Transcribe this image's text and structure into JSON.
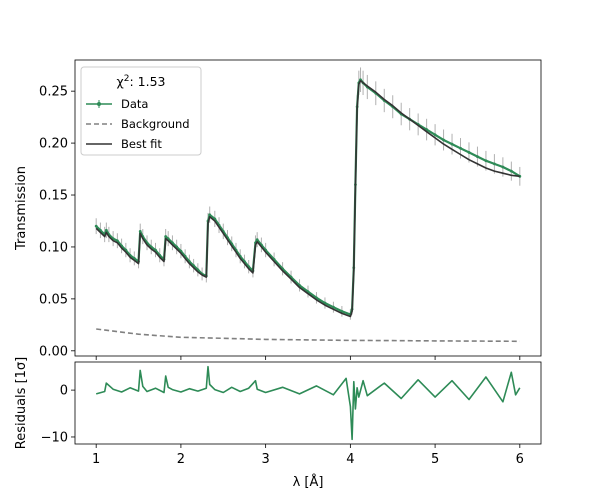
{
  "chart_data": [
    {
      "type": "line",
      "panel": "main",
      "xlim": [
        0.75,
        6.25
      ],
      "ylim": [
        -0.005,
        0.28
      ],
      "ylabel": "Transmission",
      "xlabel": "",
      "yticks": [
        0.0,
        0.05,
        0.1,
        0.15,
        0.2,
        0.25
      ],
      "ytick_labels": [
        "0.00",
        "0.05",
        "0.10",
        "0.15",
        "0.20",
        "0.25"
      ],
      "xticks": [
        1,
        2,
        3,
        4,
        5,
        6
      ],
      "grid": false,
      "legend": {
        "placement": "top-left",
        "title": "χ²: 1.53",
        "title_main": "χ",
        "title_sup": "2",
        "title_rest": ": 1.53",
        "entries": [
          "Data",
          "Background",
          "Best fit"
        ]
      },
      "series": [
        {
          "name": "Data",
          "color": "#2e8b57",
          "errorbar_color": "#b0b0b0",
          "x": [
            1.0,
            1.05,
            1.1,
            1.12,
            1.15,
            1.2,
            1.25,
            1.3,
            1.35,
            1.4,
            1.45,
            1.5,
            1.52,
            1.55,
            1.6,
            1.65,
            1.7,
            1.75,
            1.8,
            1.82,
            1.85,
            1.9,
            1.95,
            2.0,
            2.05,
            2.1,
            2.15,
            2.2,
            2.25,
            2.3,
            2.32,
            2.34,
            2.4,
            2.45,
            2.5,
            2.55,
            2.6,
            2.65,
            2.7,
            2.75,
            2.8,
            2.85,
            2.88,
            2.9,
            2.95,
            3.0,
            3.1,
            3.2,
            3.3,
            3.4,
            3.5,
            3.6,
            3.7,
            3.8,
            3.9,
            4.0,
            4.02,
            4.04,
            4.06,
            4.08,
            4.1,
            4.12,
            4.15,
            4.2,
            4.3,
            4.4,
            4.5,
            4.6,
            4.7,
            4.8,
            4.9,
            5.0,
            5.1,
            5.2,
            5.3,
            5.4,
            5.5,
            5.6,
            5.7,
            5.8,
            5.9,
            6.0
          ],
          "y": [
            0.12,
            0.116,
            0.112,
            0.116,
            0.112,
            0.108,
            0.106,
            0.101,
            0.097,
            0.092,
            0.089,
            0.086,
            0.115,
            0.11,
            0.104,
            0.1,
            0.097,
            0.092,
            0.088,
            0.11,
            0.108,
            0.104,
            0.1,
            0.096,
            0.091,
            0.086,
            0.082,
            0.078,
            0.074,
            0.072,
            0.125,
            0.131,
            0.127,
            0.121,
            0.115,
            0.109,
            0.103,
            0.097,
            0.091,
            0.086,
            0.081,
            0.077,
            0.104,
            0.107,
            0.102,
            0.097,
            0.088,
            0.079,
            0.071,
            0.063,
            0.057,
            0.051,
            0.046,
            0.042,
            0.038,
            0.035,
            0.04,
            0.08,
            0.16,
            0.235,
            0.258,
            0.261,
            0.258,
            0.254,
            0.248,
            0.241,
            0.235,
            0.228,
            0.223,
            0.218,
            0.213,
            0.208,
            0.203,
            0.199,
            0.195,
            0.191,
            0.187,
            0.183,
            0.18,
            0.177,
            0.173,
            0.168
          ]
        },
        {
          "name": "Background",
          "color": "#808080",
          "linestyle": "dashed",
          "x": [
            1.0,
            1.5,
            2.0,
            2.5,
            3.0,
            3.5,
            4.0,
            4.5,
            5.0,
            5.5,
            6.0
          ],
          "y": [
            0.021,
            0.016,
            0.013,
            0.012,
            0.011,
            0.0105,
            0.01,
            0.0098,
            0.0095,
            0.0093,
            0.0092
          ]
        },
        {
          "name": "Best fit",
          "color": "#333333",
          "x": [
            1.0,
            1.05,
            1.1,
            1.12,
            1.15,
            1.2,
            1.25,
            1.3,
            1.35,
            1.4,
            1.45,
            1.5,
            1.52,
            1.55,
            1.6,
            1.65,
            1.7,
            1.75,
            1.8,
            1.82,
            1.85,
            1.9,
            1.95,
            2.0,
            2.05,
            2.1,
            2.15,
            2.2,
            2.25,
            2.3,
            2.32,
            2.34,
            2.4,
            2.45,
            2.5,
            2.55,
            2.6,
            2.65,
            2.7,
            2.75,
            2.8,
            2.85,
            2.88,
            2.9,
            2.95,
            3.0,
            3.1,
            3.2,
            3.3,
            3.4,
            3.5,
            3.6,
            3.7,
            3.8,
            3.9,
            4.0,
            4.02,
            4.04,
            4.06,
            4.08,
            4.1,
            4.12,
            4.15,
            4.2,
            4.3,
            4.4,
            4.5,
            4.6,
            4.7,
            4.8,
            4.9,
            5.0,
            5.1,
            5.2,
            5.3,
            5.4,
            5.5,
            5.6,
            5.7,
            5.8,
            5.9,
            6.0
          ],
          "y": [
            0.118,
            0.114,
            0.11,
            0.114,
            0.11,
            0.106,
            0.104,
            0.099,
            0.095,
            0.09,
            0.087,
            0.084,
            0.113,
            0.108,
            0.102,
            0.098,
            0.095,
            0.09,
            0.086,
            0.108,
            0.106,
            0.102,
            0.098,
            0.094,
            0.089,
            0.084,
            0.08,
            0.076,
            0.073,
            0.071,
            0.123,
            0.129,
            0.125,
            0.119,
            0.113,
            0.107,
            0.101,
            0.095,
            0.089,
            0.084,
            0.079,
            0.075,
            0.102,
            0.105,
            0.1,
            0.095,
            0.086,
            0.077,
            0.069,
            0.061,
            0.055,
            0.049,
            0.044,
            0.04,
            0.036,
            0.033,
            0.038,
            0.078,
            0.158,
            0.233,
            0.257,
            0.26,
            0.258,
            0.255,
            0.249,
            0.242,
            0.236,
            0.229,
            0.223,
            0.217,
            0.211,
            0.205,
            0.199,
            0.194,
            0.189,
            0.184,
            0.18,
            0.176,
            0.173,
            0.171,
            0.169,
            0.168
          ]
        }
      ]
    },
    {
      "type": "line",
      "panel": "residuals",
      "xlim": [
        0.75,
        6.25
      ],
      "ylim": [
        -11.5,
        6.0
      ],
      "xlabel": "λ [Å]",
      "ylabel": "Residuals [1σ]",
      "yticks": [
        0,
        -10
      ],
      "ytick_labels": [
        "0",
        "−10"
      ],
      "xticks": [
        1,
        2,
        3,
        4,
        5,
        6
      ],
      "xtick_labels": [
        "1",
        "2",
        "3",
        "4",
        "5",
        "6"
      ],
      "grid": false,
      "series": [
        {
          "name": "Residuals",
          "color": "#2e8b57",
          "x": [
            1.0,
            1.1,
            1.12,
            1.2,
            1.3,
            1.4,
            1.5,
            1.52,
            1.55,
            1.6,
            1.7,
            1.8,
            1.82,
            1.85,
            1.9,
            2.0,
            2.1,
            2.2,
            2.3,
            2.32,
            2.34,
            2.4,
            2.5,
            2.6,
            2.7,
            2.8,
            2.88,
            2.9,
            3.0,
            3.2,
            3.4,
            3.6,
            3.8,
            3.95,
            4.0,
            4.02,
            4.04,
            4.06,
            4.08,
            4.1,
            4.15,
            4.2,
            4.4,
            4.6,
            4.8,
            5.0,
            5.2,
            5.4,
            5.6,
            5.8,
            5.9,
            5.95,
            6.0
          ],
          "y": [
            -0.8,
            -0.3,
            1.5,
            0.2,
            -0.4,
            0.5,
            -0.2,
            4.2,
            0.8,
            -0.3,
            0.4,
            -0.5,
            3.0,
            0.6,
            0.1,
            -0.4,
            0.3,
            -0.2,
            0.4,
            5.0,
            1.2,
            0.1,
            -0.5,
            0.6,
            -0.3,
            0.4,
            2.0,
            0.2,
            -0.5,
            0.6,
            -0.8,
            0.9,
            -1.0,
            2.5,
            -3.5,
            -10.5,
            1.8,
            -4.0,
            0.5,
            -1.5,
            2.0,
            -1.2,
            1.5,
            -1.8,
            2.2,
            -1.5,
            2.0,
            -2.0,
            2.8,
            -2.5,
            3.8,
            -1.0,
            0.5
          ]
        }
      ]
    }
  ]
}
